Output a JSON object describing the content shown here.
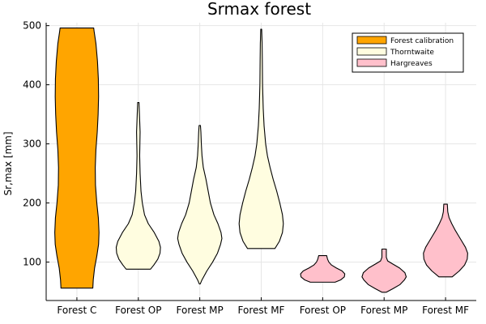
{
  "chart_data": {
    "type": "violin",
    "title": "Srmax forest",
    "xlabel": "",
    "ylabel": "Sr,max [mm]",
    "ylim": [
      35,
      505
    ],
    "yticks": [
      100,
      200,
      300,
      400,
      500
    ],
    "grid": true,
    "legend_position": "top-right",
    "categories": [
      "Forest C",
      "Forest OP",
      "Forest MP",
      "Forest MF",
      "Forest OP",
      "Forest MP",
      "Forest MF"
    ],
    "series": [
      {
        "name": "Forest calibration",
        "color": "#ffa500"
      },
      {
        "name": "Thorntwaite",
        "color": "#fffde0"
      },
      {
        "name": "Hargreaves",
        "color": "#ffc0cb"
      }
    ],
    "violins": [
      {
        "category": "Forest C",
        "series": 0,
        "min": 56,
        "max": 496,
        "profile": [
          [
            56,
            0.72
          ],
          [
            70,
            0.74
          ],
          [
            90,
            0.8
          ],
          [
            110,
            0.9
          ],
          [
            130,
            0.98
          ],
          [
            150,
            1.0
          ],
          [
            175,
            0.97
          ],
          [
            200,
            0.9
          ],
          [
            230,
            0.84
          ],
          [
            260,
            0.83
          ],
          [
            290,
            0.86
          ],
          [
            320,
            0.92
          ],
          [
            350,
            0.96
          ],
          [
            380,
            0.98
          ],
          [
            410,
            0.97
          ],
          [
            440,
            0.93
          ],
          [
            470,
            0.86
          ],
          [
            490,
            0.78
          ],
          [
            496,
            0.76
          ]
        ]
      },
      {
        "category": "Forest OP",
        "series": 1,
        "min": 88,
        "max": 370,
        "profile": [
          [
            88,
            0.55
          ],
          [
            95,
            0.7
          ],
          [
            105,
            0.88
          ],
          [
            115,
            0.98
          ],
          [
            125,
            1.0
          ],
          [
            135,
            0.93
          ],
          [
            150,
            0.72
          ],
          [
            165,
            0.45
          ],
          [
            180,
            0.28
          ],
          [
            200,
            0.18
          ],
          [
            220,
            0.12
          ],
          [
            250,
            0.08
          ],
          [
            280,
            0.06
          ],
          [
            300,
            0.07
          ],
          [
            320,
            0.08
          ],
          [
            340,
            0.06
          ],
          [
            360,
            0.04
          ],
          [
            370,
            0.03
          ]
        ]
      },
      {
        "category": "Forest MP",
        "series": 1,
        "min": 63,
        "max": 331,
        "profile": [
          [
            63,
            0.02
          ],
          [
            70,
            0.1
          ],
          [
            85,
            0.32
          ],
          [
            100,
            0.58
          ],
          [
            115,
            0.8
          ],
          [
            130,
            0.94
          ],
          [
            140,
            1.0
          ],
          [
            150,
            0.96
          ],
          [
            165,
            0.82
          ],
          [
            180,
            0.64
          ],
          [
            200,
            0.48
          ],
          [
            220,
            0.38
          ],
          [
            240,
            0.28
          ],
          [
            260,
            0.16
          ],
          [
            280,
            0.1
          ],
          [
            300,
            0.07
          ],
          [
            320,
            0.05
          ],
          [
            331,
            0.03
          ]
        ]
      },
      {
        "category": "Forest MF",
        "series": 1,
        "min": 123,
        "max": 494,
        "profile": [
          [
            123,
            0.62
          ],
          [
            135,
            0.82
          ],
          [
            150,
            0.96
          ],
          [
            165,
            1.0
          ],
          [
            180,
            0.96
          ],
          [
            200,
            0.84
          ],
          [
            220,
            0.7
          ],
          [
            240,
            0.54
          ],
          [
            260,
            0.4
          ],
          [
            280,
            0.28
          ],
          [
            300,
            0.2
          ],
          [
            330,
            0.13
          ],
          [
            360,
            0.09
          ],
          [
            400,
            0.06
          ],
          [
            440,
            0.05
          ],
          [
            470,
            0.04
          ],
          [
            494,
            0.02
          ]
        ]
      },
      {
        "category": "Forest OP",
        "series": 2,
        "min": 66,
        "max": 111,
        "profile": [
          [
            66,
            0.56
          ],
          [
            70,
            0.82
          ],
          [
            75,
            0.98
          ],
          [
            80,
            1.0
          ],
          [
            85,
            0.88
          ],
          [
            90,
            0.62
          ],
          [
            95,
            0.4
          ],
          [
            100,
            0.28
          ],
          [
            105,
            0.22
          ],
          [
            111,
            0.18
          ]
        ]
      },
      {
        "category": "Forest MP",
        "series": 2,
        "min": 49,
        "max": 122,
        "profile": [
          [
            49,
            0.1
          ],
          [
            55,
            0.4
          ],
          [
            62,
            0.72
          ],
          [
            70,
            0.92
          ],
          [
            75,
            1.0
          ],
          [
            82,
            0.94
          ],
          [
            90,
            0.7
          ],
          [
            97,
            0.38
          ],
          [
            102,
            0.16
          ],
          [
            108,
            0.1
          ],
          [
            115,
            0.1
          ],
          [
            122,
            0.1
          ]
        ]
      },
      {
        "category": "Forest MF",
        "series": 2,
        "min": 75,
        "max": 198,
        "profile": [
          [
            75,
            0.3
          ],
          [
            85,
            0.62
          ],
          [
            95,
            0.86
          ],
          [
            105,
            0.98
          ],
          [
            115,
            1.0
          ],
          [
            125,
            0.9
          ],
          [
            135,
            0.74
          ],
          [
            145,
            0.58
          ],
          [
            155,
            0.42
          ],
          [
            165,
            0.28
          ],
          [
            175,
            0.16
          ],
          [
            185,
            0.1
          ],
          [
            198,
            0.08
          ]
        ]
      }
    ]
  }
}
